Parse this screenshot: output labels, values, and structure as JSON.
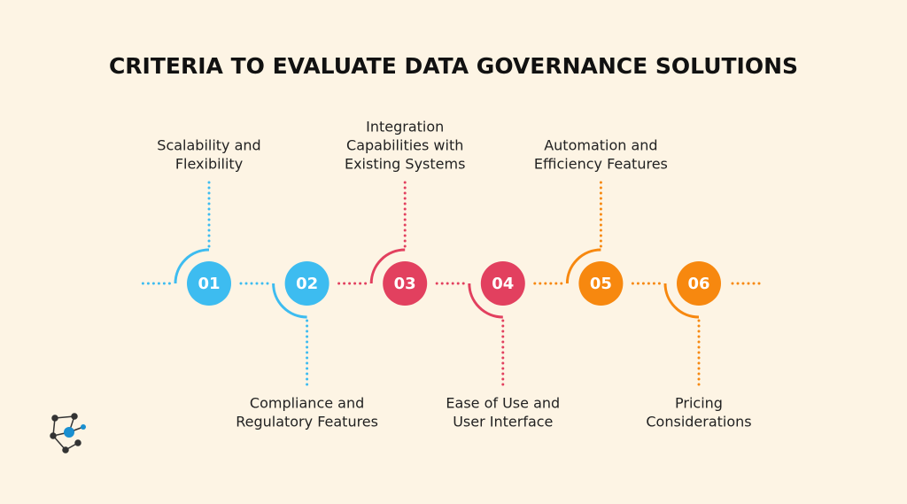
{
  "title": "CRITERIA TO EVALUATE DATA GOVERNANCE SOLUTIONS",
  "steps": [
    {
      "number": "01",
      "label": [
        "Scalability and",
        "Flexibility"
      ],
      "color": "#3dbcf0"
    },
    {
      "number": "02",
      "label": [
        "Compliance and",
        "Regulatory Features"
      ],
      "color": "#3dbcf0"
    },
    {
      "number": "03",
      "label": [
        "Integration",
        "Capabilities with",
        "Existing Systems"
      ],
      "color": "#e2405f"
    },
    {
      "number": "04",
      "label": [
        "Ease of Use and",
        "User Interface"
      ],
      "color": "#e2405f"
    },
    {
      "number": "05",
      "label": [
        "Automation and",
        "Efficiency Features"
      ],
      "color": "#f7880f"
    },
    {
      "number": "06",
      "label": [
        "Pricing",
        "Considerations"
      ],
      "color": "#f7880f"
    }
  ]
}
